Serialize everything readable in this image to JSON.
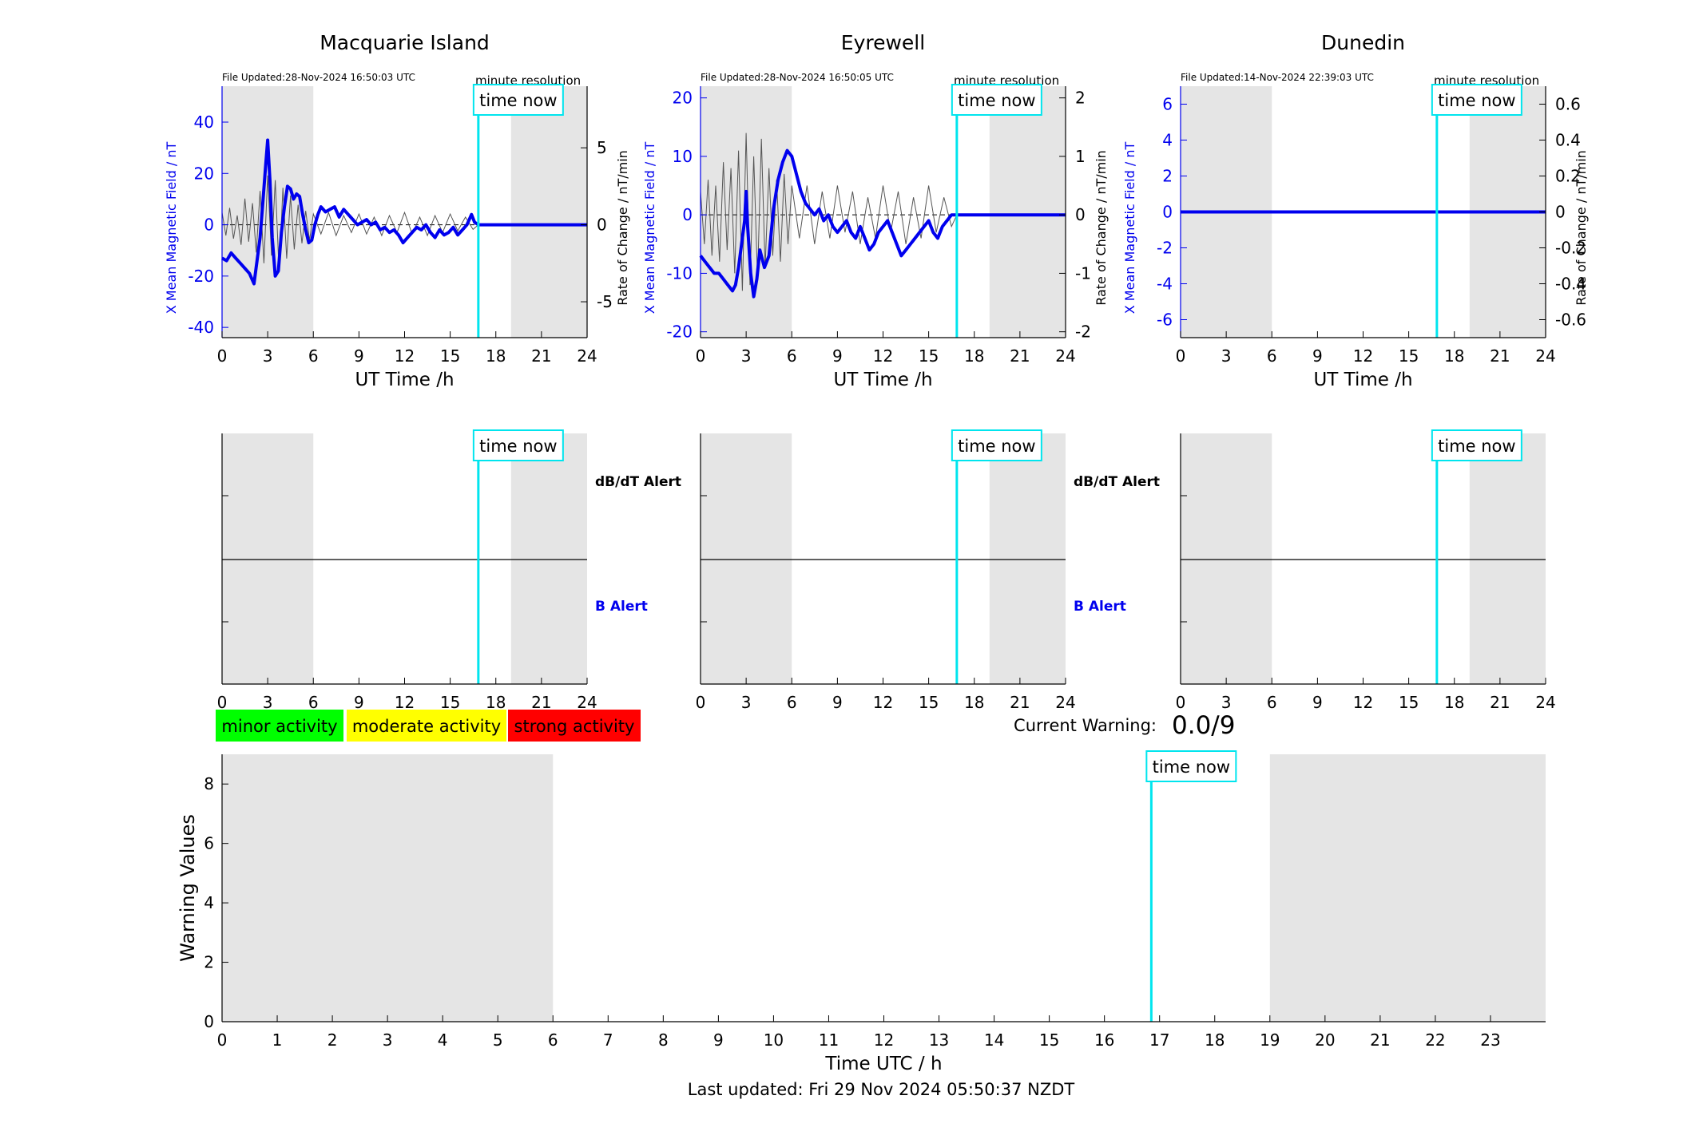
{
  "stations": [
    {
      "name": "Macquarie Island",
      "file_updated": "File Updated:28-Nov-2024 16:50:03 UTC",
      "resolution_label": "minute resolution",
      "ylabel_left": "X Mean Magnetic Field / nT",
      "ylabel_right": "Rate of Change / nT/min",
      "xlabel": "UT Time /h",
      "left_ylim": [
        -44,
        54
      ],
      "left_yticks": [
        -40,
        -20,
        0,
        20,
        40
      ],
      "right_ylim": [
        -7.33,
        9.0
      ],
      "right_yticks": [
        -5,
        0,
        5
      ]
    },
    {
      "name": "Eyrewell",
      "file_updated": "File Updated:28-Nov-2024 16:50:05 UTC",
      "resolution_label": "minute resolution",
      "ylabel_left": "X Mean Magnetic Field / nT",
      "ylabel_right": "Rate of Change / nT/min",
      "xlabel": "UT Time /h",
      "left_ylim": [
        -21,
        22
      ],
      "left_yticks": [
        -20,
        -10,
        0,
        10,
        20
      ],
      "right_ylim": [
        -2.1,
        2.2
      ],
      "right_yticks": [
        -2,
        -1,
        0,
        1,
        2
      ]
    },
    {
      "name": "Dunedin",
      "file_updated": "File Updated:14-Nov-2024 22:39:03 UTC",
      "resolution_label": "minute resolution",
      "ylabel_left": "X Mean Magnetic Field / nT",
      "ylabel_right": "Rate of Change / nT/min",
      "xlabel": "UT Time /h",
      "left_ylim": [
        -7,
        7
      ],
      "left_yticks": [
        -6,
        -4,
        -2,
        0,
        2,
        4,
        6
      ],
      "right_ylim": [
        -0.7,
        0.7
      ],
      "right_yticks": [
        -0.6,
        -0.4,
        -0.2,
        0,
        0.2,
        0.4,
        0.6
      ]
    }
  ],
  "time_now_label": "time now",
  "alert_labels": {
    "dbdt": "dB/dT Alert",
    "b": "B Alert"
  },
  "activity_legend": [
    {
      "label": "minor activity",
      "color": "#00ff00"
    },
    {
      "label": "moderate activity",
      "color": "#ffff00"
    },
    {
      "label": "strong activity",
      "color": "#ff0000"
    }
  ],
  "current_warning": {
    "label": "Current Warning:",
    "value": "0.0/9"
  },
  "warning_plot": {
    "ylabel": "Warning Values",
    "xlabel": "Time UTC / h",
    "ylim": [
      0,
      9
    ],
    "yticks": [
      0,
      2,
      4,
      6,
      8
    ],
    "xlim": [
      0,
      24
    ],
    "xticks": [
      0,
      1,
      2,
      3,
      4,
      5,
      6,
      7,
      8,
      9,
      10,
      11,
      12,
      13,
      14,
      15,
      16,
      17,
      18,
      19,
      20,
      21,
      22,
      23
    ]
  },
  "last_updated": "Last updated: Fri 29 Nov 2024 05:50:37 NZDT",
  "colors": {
    "field": "#0000ee",
    "rate": "#555555",
    "time_now": "#00e5ee",
    "night_shade": "#e5e5e5",
    "axis_blue": "#0000ee"
  },
  "chart_data": [
    {
      "type": "line",
      "title": "Macquarie Island",
      "xlabel": "UT Time /h",
      "ylabel": "X Mean Magnetic Field / nT",
      "xlim": [
        0,
        24
      ],
      "xticks": [
        0,
        3,
        6,
        9,
        12,
        15,
        18,
        21,
        24
      ],
      "time_now": 16.85,
      "shaded_x_ranges": [
        [
          0,
          6
        ],
        [
          19,
          24
        ]
      ],
      "series": [
        {
          "name": "X Mean Magnetic Field / nT",
          "axis": "left",
          "x": [
            0,
            0.3,
            0.6,
            0.9,
            1.2,
            1.5,
            1.8,
            2.1,
            2.3,
            2.5,
            2.7,
            2.85,
            3.0,
            3.15,
            3.3,
            3.5,
            3.7,
            3.9,
            4.1,
            4.3,
            4.5,
            4.7,
            4.9,
            5.1,
            5.3,
            5.5,
            5.7,
            5.9,
            6.1,
            6.3,
            6.5,
            6.8,
            7.1,
            7.4,
            7.7,
            8.0,
            8.3,
            8.6,
            8.9,
            9.2,
            9.5,
            9.8,
            10.1,
            10.4,
            10.7,
            11.0,
            11.3,
            11.6,
            11.9,
            12.2,
            12.5,
            12.8,
            13.1,
            13.4,
            13.7,
            14.0,
            14.3,
            14.6,
            14.9,
            15.2,
            15.5,
            15.8,
            16.1,
            16.4,
            16.6,
            16.85,
            17.5,
            19,
            21,
            24
          ],
          "values": [
            -13,
            -14,
            -11,
            -13,
            -15,
            -17,
            -19,
            -23,
            -14,
            -5,
            10,
            22,
            33,
            17,
            -5,
            -20,
            -18,
            -3,
            7,
            15,
            14,
            10,
            12,
            11,
            4,
            -2,
            -7,
            -6,
            0,
            4,
            7,
            5,
            6,
            7,
            3,
            6,
            4,
            2,
            0,
            1,
            2,
            0,
            1,
            -2,
            -1,
            -3,
            -2,
            -4,
            -7,
            -5,
            -3,
            -1,
            -2,
            0,
            -3,
            -5,
            -2,
            -4,
            -3,
            -1,
            -4,
            -2,
            0,
            4,
            1,
            0,
            0,
            0,
            0,
            0
          ]
        },
        {
          "name": "Rate of Change / nT/min",
          "axis": "right",
          "x": [
            0,
            0.25,
            0.5,
            0.75,
            1.0,
            1.25,
            1.5,
            1.75,
            2.0,
            2.25,
            2.5,
            2.75,
            3.0,
            3.25,
            3.5,
            3.75,
            4.0,
            4.25,
            4.5,
            4.75,
            5.0,
            5.25,
            5.5,
            5.75,
            6.0,
            6.5,
            7.0,
            7.5,
            8.0,
            8.5,
            9.0,
            9.5,
            10.0,
            10.5,
            11.0,
            11.5,
            12.0,
            12.5,
            13.0,
            13.5,
            14.0,
            14.5,
            15.0,
            15.5,
            16.0,
            16.5,
            16.85
          ],
          "values": [
            0.8,
            -0.7,
            1.1,
            -0.9,
            0.6,
            -1.3,
            1.7,
            -1.1,
            1.4,
            -1.8,
            2.2,
            -2.5,
            3.2,
            -2.0,
            2.9,
            -3.1,
            2.4,
            -2.2,
            1.9,
            -1.6,
            1.3,
            -1.2,
            0.9,
            -1.0,
            0.7,
            -0.6,
            0.8,
            -0.7,
            0.6,
            -0.5,
            0.7,
            -0.6,
            0.5,
            -0.7,
            0.6,
            -0.5,
            0.8,
            -0.6,
            0.5,
            -0.7,
            0.6,
            -0.5,
            0.7,
            -0.4,
            0.5,
            -0.3,
            0.0
          ]
        }
      ]
    },
    {
      "type": "line",
      "title": "Eyrewell",
      "xlabel": "UT Time /h",
      "ylabel": "X Mean Magnetic Field / nT",
      "xlim": [
        0,
        24
      ],
      "xticks": [
        0,
        3,
        6,
        9,
        12,
        15,
        18,
        21,
        24
      ],
      "time_now": 16.85,
      "shaded_x_ranges": [
        [
          0,
          6
        ],
        [
          19,
          24
        ]
      ],
      "series": [
        {
          "name": "X Mean Magnetic Field / nT",
          "axis": "left",
          "x": [
            0,
            0.3,
            0.6,
            0.9,
            1.2,
            1.5,
            1.8,
            2.1,
            2.3,
            2.5,
            2.7,
            2.9,
            3.0,
            3.1,
            3.3,
            3.5,
            3.7,
            3.9,
            4.2,
            4.5,
            4.8,
            5.1,
            5.4,
            5.7,
            6.0,
            6.3,
            6.6,
            6.9,
            7.2,
            7.5,
            7.8,
            8.1,
            8.4,
            8.7,
            9.0,
            9.3,
            9.6,
            9.9,
            10.2,
            10.5,
            10.8,
            11.1,
            11.4,
            11.7,
            12.0,
            12.3,
            12.6,
            12.9,
            13.2,
            13.5,
            13.8,
            14.1,
            14.4,
            14.7,
            15.0,
            15.3,
            15.6,
            15.9,
            16.2,
            16.5,
            16.85,
            17.5,
            19,
            21,
            24
          ],
          "values": [
            -7,
            -8,
            -9,
            -10,
            -10,
            -11,
            -12,
            -13,
            -12,
            -9,
            -5,
            -1,
            4,
            -2,
            -10,
            -14,
            -11,
            -6,
            -9,
            -7,
            1,
            6,
            9,
            11,
            10,
            7,
            4,
            2,
            1,
            0,
            1,
            -1,
            0,
            -2,
            -3,
            -2,
            -1,
            -3,
            -4,
            -2,
            -4,
            -6,
            -5,
            -3,
            -2,
            -1,
            -3,
            -5,
            -7,
            -6,
            -5,
            -4,
            -3,
            -2,
            -1,
            -3,
            -4,
            -2,
            -1,
            0,
            0,
            0,
            0,
            0,
            0
          ]
        },
        {
          "name": "Rate of Change / nT/min",
          "axis": "right",
          "x": [
            0,
            0.25,
            0.5,
            0.75,
            1.0,
            1.25,
            1.5,
            1.75,
            2.0,
            2.25,
            2.5,
            2.75,
            3.0,
            3.25,
            3.5,
            3.75,
            4.0,
            4.25,
            4.5,
            4.75,
            5.0,
            5.25,
            5.5,
            5.75,
            6.0,
            6.5,
            7.0,
            7.5,
            8.0,
            8.5,
            9.0,
            9.5,
            10.0,
            10.5,
            11.0,
            11.5,
            12.0,
            12.5,
            13.0,
            13.5,
            14.0,
            14.5,
            15.0,
            15.5,
            16.0,
            16.5,
            16.85
          ],
          "values": [
            0.4,
            -0.5,
            0.6,
            -0.7,
            0.5,
            -0.8,
            0.9,
            -0.6,
            0.8,
            -1.0,
            1.1,
            -1.3,
            1.4,
            -1.2,
            1.0,
            -1.1,
            1.3,
            -0.9,
            0.8,
            -0.7,
            0.6,
            -0.8,
            0.7,
            -0.5,
            0.5,
            -0.4,
            0.5,
            -0.5,
            0.4,
            -0.4,
            0.5,
            -0.3,
            0.4,
            -0.5,
            0.3,
            -0.4,
            0.5,
            -0.3,
            0.4,
            -0.5,
            0.3,
            -0.4,
            0.5,
            -0.3,
            0.3,
            -0.2,
            0.0
          ]
        }
      ]
    },
    {
      "type": "line",
      "title": "Dunedin",
      "xlabel": "UT Time /h",
      "ylabel": "X Mean Magnetic Field / nT",
      "xlim": [
        0,
        24
      ],
      "xticks": [
        0,
        3,
        6,
        9,
        12,
        15,
        18,
        21,
        24
      ],
      "time_now": 16.85,
      "shaded_x_ranges": [
        [
          0,
          6
        ],
        [
          19,
          24
        ]
      ],
      "series": [
        {
          "name": "X Mean Magnetic Field / nT",
          "axis": "left",
          "x": [
            0,
            24
          ],
          "values": [
            0,
            0
          ]
        }
      ]
    },
    {
      "type": "line",
      "xlabel": "Time UTC / h",
      "ylabel": "Warning Values",
      "xlim": [
        0,
        24
      ],
      "ylim": [
        0,
        9
      ],
      "time_now": 16.85,
      "shaded_x_ranges": [
        [
          0,
          6
        ],
        [
          19,
          24
        ]
      ],
      "series": []
    }
  ]
}
